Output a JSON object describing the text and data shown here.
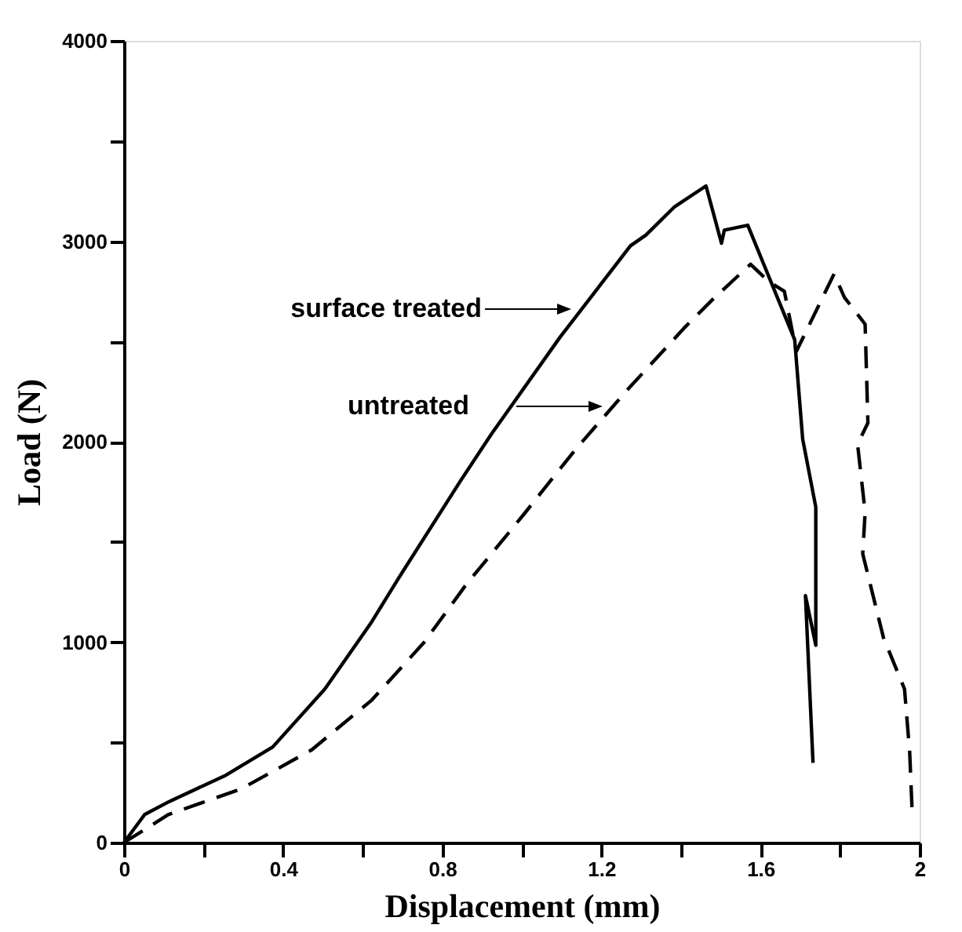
{
  "chart_data": {
    "type": "line",
    "xlabel": "Displacement (mm)",
    "ylabel": "Load (N)",
    "xlim": [
      0,
      2
    ],
    "ylim": [
      0,
      4000
    ],
    "xticks": [
      0,
      {
        "value": 0.2,
        "label": null
      },
      0.4,
      {
        "value": 0.6,
        "label": null
      },
      0.8,
      {
        "value": 1.0,
        "label": null
      },
      1.2,
      {
        "value": 1.4,
        "label": null
      },
      1.6,
      {
        "value": 1.8,
        "label": null
      },
      2
    ],
    "yticks": [
      0,
      {
        "value": 500,
        "label": null
      },
      1000,
      {
        "value": 1500,
        "label": null
      },
      2000,
      {
        "value": 2500,
        "label": null
      },
      3000,
      {
        "value": 3500,
        "label": null
      },
      4000
    ],
    "grid": false,
    "marker": "none",
    "series": [
      {
        "color": "#000000",
        "line_style": "solid",
        "x": [
          0,
          0.052,
          0.112,
          0.256,
          0.374,
          0.505,
          0.623,
          0.688,
          0.846,
          0.924,
          1.096,
          1.273,
          1.312,
          1.384,
          1.463,
          1.502,
          1.509,
          1.568,
          1.686,
          1.706,
          1.739,
          1.739,
          1.713,
          1.732
        ],
        "values": [
          0,
          140,
          203,
          336,
          477,
          766,
          1102,
          1312,
          1805,
          2039,
          2521,
          2977,
          3031,
          3172,
          3276,
          2990,
          3055,
          3080,
          2508,
          2013,
          1674,
          984,
          1232,
          398
        ]
      },
      {
        "color": "#000000",
        "line_style": "dashed",
        "x": [
          0,
          0.112,
          0.295,
          0.472,
          0.623,
          0.754,
          0.859,
          1.004,
          1.135,
          1.266,
          1.411,
          1.483,
          1.575,
          1.62,
          1.66,
          1.69,
          1.785,
          1.811,
          1.863,
          1.87,
          1.844,
          1.863,
          1.857,
          1.909,
          1.962,
          1.975,
          1.981
        ],
        "values": [
          0,
          140,
          268,
          463,
          711,
          998,
          1284,
          1635,
          1961,
          2260,
          2573,
          2716,
          2885,
          2800,
          2750,
          2450,
          2837,
          2720,
          2586,
          2094,
          1987,
          1648,
          1440,
          1023,
          766,
          451,
          164
        ]
      }
    ],
    "annotations": [
      "surface treated",
      "untreated"
    ]
  }
}
